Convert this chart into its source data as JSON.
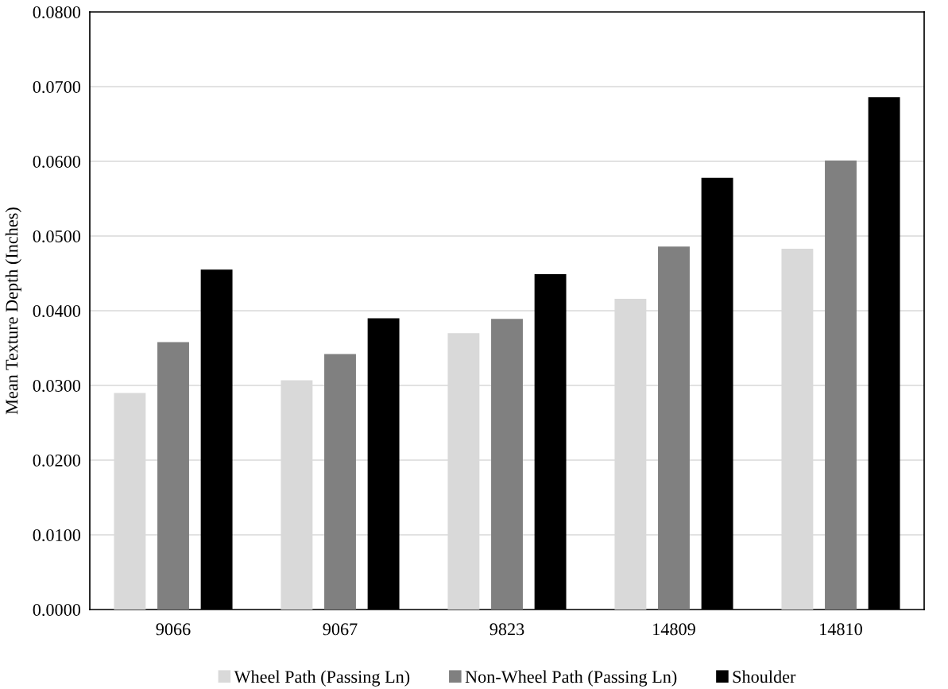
{
  "chart_data": {
    "type": "bar",
    "ylabel": "Mean Texture Depth (Inches)",
    "categories": [
      "9066",
      "9067",
      "9823",
      "14809",
      "14810"
    ],
    "series": [
      {
        "name": "Wheel Path (Passing Ln)",
        "color": "#d9d9d9",
        "values": [
          0.029,
          0.0307,
          0.037,
          0.0416,
          0.0483
        ]
      },
      {
        "name": "Non-Wheel Path (Passing Ln)",
        "color": "#808080",
        "values": [
          0.0358,
          0.0342,
          0.0389,
          0.0486,
          0.0601
        ]
      },
      {
        "name": "Shoulder",
        "color": "#000000",
        "values": [
          0.0455,
          0.039,
          0.0449,
          0.0578,
          0.0686
        ]
      }
    ],
    "ylim": [
      0,
      0.08
    ],
    "yticks": [
      {
        "value": 0,
        "label": "0.0000"
      },
      {
        "value": 0.01,
        "label": "0.0100"
      },
      {
        "value": 0.02,
        "label": "0.0200"
      },
      {
        "value": 0.03,
        "label": "0.0300"
      },
      {
        "value": 0.04,
        "label": "0.0400"
      },
      {
        "value": 0.05,
        "label": "0.0500"
      },
      {
        "value": 0.06,
        "label": "0.0600"
      },
      {
        "value": 0.07,
        "label": "0.0700"
      },
      {
        "value": 0.08,
        "label": "0.0800"
      }
    ],
    "grid": "y",
    "legend": "bottom"
  }
}
